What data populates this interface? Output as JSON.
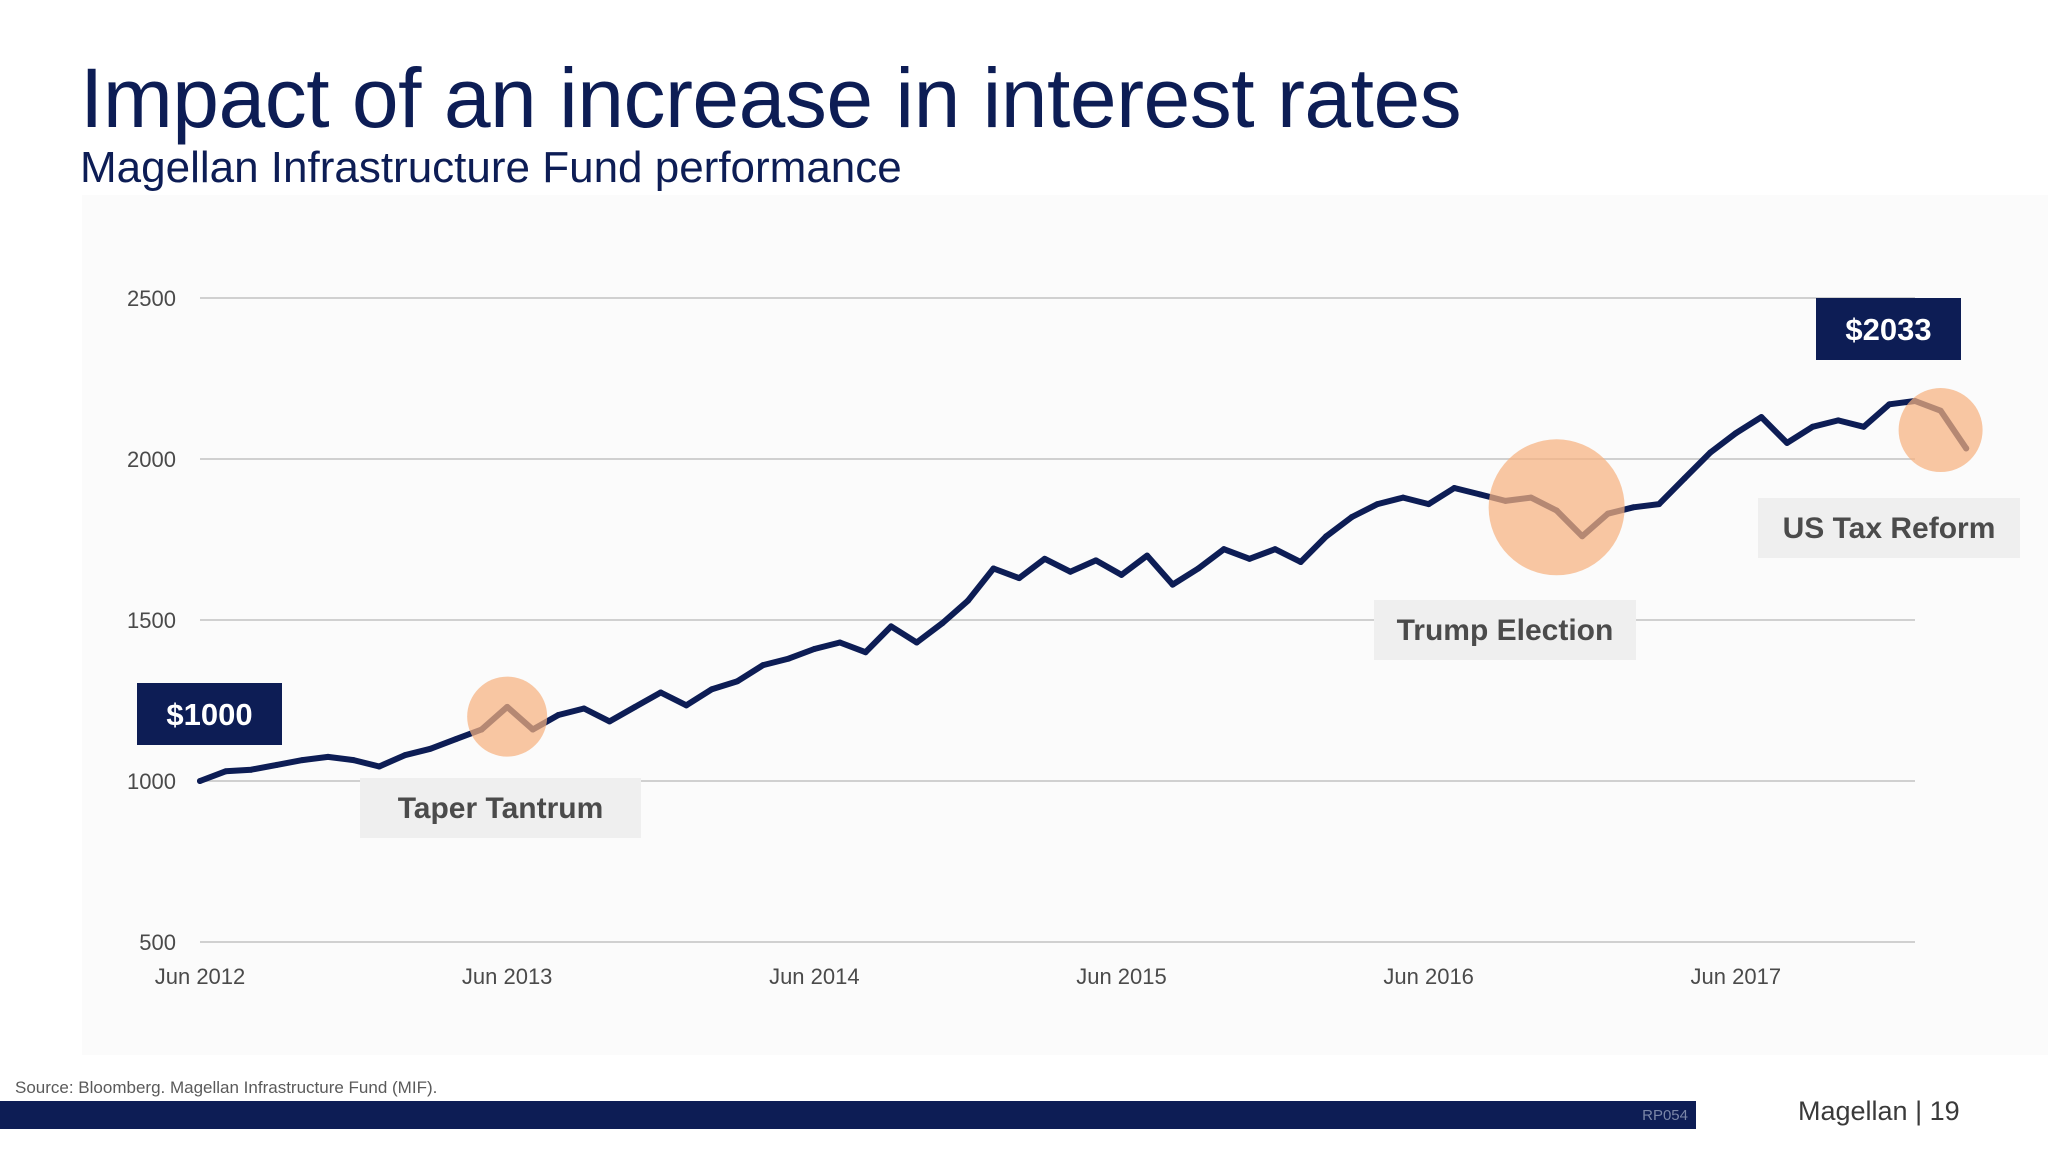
{
  "header": {
    "title": "Impact of an increase in interest rates",
    "subtitle": "Magellan Infrastructure Fund performance"
  },
  "footer": {
    "source": "Source: Bloomberg. Magellan Infrastructure Fund (MIF).",
    "code": "RP054",
    "brand": "Magellan | 19"
  },
  "colors": {
    "line": "#0d1d55",
    "highlight": "#f6b27f",
    "label_box": "#0d1d55",
    "annotation_box": "#efefef",
    "grid": "#d0d0d0",
    "axis_text": "#4a4a4a"
  },
  "chart_data": {
    "type": "line",
    "title": "",
    "xlabel": "",
    "ylabel": "",
    "ylim": [
      500,
      2500
    ],
    "yticks": [
      500,
      1000,
      1500,
      2000,
      2500
    ],
    "xlim": [
      "2012-06",
      "2018-01"
    ],
    "xticks": [
      {
        "label": "Jun 2012",
        "date": "2012-06"
      },
      {
        "label": "Jun 2013",
        "date": "2013-06"
      },
      {
        "label": "Jun 2014",
        "date": "2014-06"
      },
      {
        "label": "Jun 2015",
        "date": "2015-06"
      },
      {
        "label": "Jun 2016",
        "date": "2016-06"
      },
      {
        "label": "Jun 2017",
        "date": "2017-06"
      }
    ],
    "grid": true,
    "legend": "none",
    "series": [
      {
        "points": [
          [
            "2012-06",
            1000
          ],
          [
            "2012-07",
            1030
          ],
          [
            "2012-08",
            1035
          ],
          [
            "2012-09",
            1050
          ],
          [
            "2012-10",
            1065
          ],
          [
            "2012-11",
            1075
          ],
          [
            "2012-12",
            1065
          ],
          [
            "2013-01",
            1045
          ],
          [
            "2013-02",
            1080
          ],
          [
            "2013-03",
            1100
          ],
          [
            "2013-04",
            1130
          ],
          [
            "2013-05",
            1160
          ],
          [
            "2013-06",
            1230
          ],
          [
            "2013-07",
            1160
          ],
          [
            "2013-08",
            1205
          ],
          [
            "2013-09",
            1225
          ],
          [
            "2013-10",
            1185
          ],
          [
            "2013-11",
            1230
          ],
          [
            "2013-12",
            1275
          ],
          [
            "2014-01",
            1235
          ],
          [
            "2014-02",
            1285
          ],
          [
            "2014-03",
            1310
          ],
          [
            "2014-04",
            1360
          ],
          [
            "2014-05",
            1380
          ],
          [
            "2014-06",
            1410
          ],
          [
            "2014-07",
            1430
          ],
          [
            "2014-08",
            1400
          ],
          [
            "2014-09",
            1480
          ],
          [
            "2014-10",
            1430
          ],
          [
            "2014-11",
            1490
          ],
          [
            "2014-12",
            1560
          ],
          [
            "2015-01",
            1660
          ],
          [
            "2015-02",
            1630
          ],
          [
            "2015-03",
            1690
          ],
          [
            "2015-04",
            1650
          ],
          [
            "2015-05",
            1685
          ],
          [
            "2015-06",
            1640
          ],
          [
            "2015-07",
            1700
          ],
          [
            "2015-08",
            1610
          ],
          [
            "2015-09",
            1660
          ],
          [
            "2015-10",
            1720
          ],
          [
            "2015-11",
            1690
          ],
          [
            "2015-12",
            1720
          ],
          [
            "2016-01",
            1680
          ],
          [
            "2016-02",
            1760
          ],
          [
            "2016-03",
            1820
          ],
          [
            "2016-04",
            1860
          ],
          [
            "2016-05",
            1880
          ],
          [
            "2016-06",
            1860
          ],
          [
            "2016-07",
            1910
          ],
          [
            "2016-08",
            1890
          ],
          [
            "2016-09",
            1870
          ],
          [
            "2016-10",
            1880
          ],
          [
            "2016-11",
            1840
          ],
          [
            "2016-12",
            1760
          ],
          [
            "2017-01",
            1830
          ],
          [
            "2017-02",
            1850
          ],
          [
            "2017-03",
            1860
          ],
          [
            "2017-04",
            1940
          ],
          [
            "2017-05",
            2020
          ],
          [
            "2017-06",
            2080
          ],
          [
            "2017-07",
            2130
          ],
          [
            "2017-08",
            2050
          ],
          [
            "2017-09",
            2100
          ],
          [
            "2017-10",
            2120
          ],
          [
            "2017-11",
            2100
          ],
          [
            "2017-12",
            2170
          ],
          [
            "2018-01",
            2180
          ],
          [
            "2018-02",
            2150
          ],
          [
            "2018-03",
            2033
          ]
        ]
      }
    ],
    "value_labels": [
      {
        "text": "$1000",
        "date": "2012-06",
        "value": 1000,
        "anchor": "start"
      },
      {
        "text": "$2033",
        "date": "2018-03",
        "value": 2033,
        "anchor": "end"
      }
    ],
    "annotations": [
      {
        "text": "Taper Tantrum",
        "date": "2013-06",
        "value": 1200
      },
      {
        "text": "Trump Election",
        "date": "2016-11",
        "value": 1850
      },
      {
        "text": "US Tax Reform",
        "date": "2018-02",
        "value": 2090
      }
    ]
  }
}
